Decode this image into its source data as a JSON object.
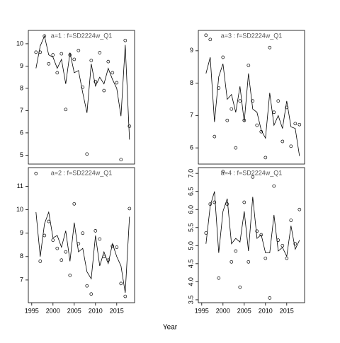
{
  "xlabel": "Year",
  "chart_data": [
    {
      "type": "scatter",
      "title": "a=1  :  f=SD2224w_Q1",
      "x": [
        1996,
        1997,
        1998,
        1999,
        2000,
        2001,
        2002,
        2003,
        2004,
        2005,
        2006,
        2007,
        2008,
        2009,
        2010,
        2011,
        2012,
        2013,
        2014,
        2015,
        2016,
        2017,
        2018
      ],
      "values": [
        9.62,
        9.62,
        10.35,
        9.1,
        9.5,
        8.7,
        9.55,
        7.05,
        9.5,
        9.3,
        9.7,
        8.05,
        5.05,
        9.25,
        8.3,
        9.6,
        7.9,
        9.2,
        8.7,
        8.25,
        4.8,
        10.15,
        6.3
      ],
      "fit": [
        8.9,
        9.9,
        10.35,
        9.5,
        9.4,
        8.9,
        9.3,
        8.2,
        9.6,
        8.7,
        8.8,
        7.8,
        6.9,
        9.1,
        8.1,
        8.5,
        8.2,
        8.9,
        8.4,
        8.0,
        6.75,
        9.95,
        5.7
      ],
      "xlim": [
        1994.2,
        2019.2
      ],
      "ylim": [
        4.6,
        10.6
      ],
      "yticks": [
        5,
        6,
        7,
        8,
        9,
        10
      ]
    },
    {
      "type": "scatter",
      "title": "a=3  :  f=SD2224w_Q1",
      "x": [
        1996,
        1997,
        1998,
        1999,
        2000,
        2001,
        2002,
        2003,
        2004,
        2005,
        2006,
        2007,
        2008,
        2009,
        2010,
        2011,
        2012,
        2013,
        2014,
        2015,
        2016,
        2017,
        2018
      ],
      "values": [
        9.48,
        9.35,
        6.35,
        7.85,
        8.8,
        6.85,
        7.2,
        6.0,
        7.45,
        6.85,
        8.55,
        7.45,
        6.7,
        6.5,
        5.7,
        9.1,
        7.1,
        7.45,
        6.2,
        7.25,
        6.05,
        6.75,
        6.72
      ],
      "fit": [
        8.3,
        8.8,
        6.8,
        8.2,
        8.6,
        7.5,
        7.65,
        7.1,
        7.9,
        6.8,
        8.3,
        7.2,
        7.1,
        6.55,
        6.3,
        7.7,
        6.7,
        7.0,
        6.6,
        7.45,
        6.65,
        6.6,
        5.75
      ],
      "xlim": [
        1994.2,
        2019.2
      ],
      "ylim": [
        5.5,
        9.63
      ],
      "yticks": [
        6,
        7,
        8,
        9
      ]
    },
    {
      "type": "scatter",
      "title": "a=2  :  f=SD2224w_Q1",
      "x": [
        1996,
        1997,
        1998,
        1999,
        2000,
        2001,
        2002,
        2003,
        2004,
        2005,
        2006,
        2007,
        2008,
        2009,
        2010,
        2011,
        2012,
        2013,
        2014,
        2015,
        2016,
        2017,
        2018
      ],
      "values": [
        11.55,
        7.8,
        8.9,
        9.5,
        8.7,
        8.35,
        7.85,
        8.2,
        7.2,
        10.25,
        8.55,
        9.0,
        6.75,
        6.4,
        9.1,
        8.75,
        8.0,
        7.85,
        8.45,
        8.4,
        6.85,
        6.3,
        10.05
      ],
      "fit": [
        9.9,
        8.0,
        9.4,
        9.9,
        8.8,
        8.9,
        8.4,
        9.1,
        7.8,
        9.45,
        8.2,
        8.35,
        7.35,
        7.05,
        8.9,
        7.6,
        8.2,
        7.7,
        8.55,
        8.0,
        7.6,
        6.45,
        9.7
      ],
      "xlim": [
        1994.2,
        2019.2
      ],
      "ylim": [
        6.03,
        11.8
      ],
      "yticks": [
        7,
        8,
        9,
        10,
        11
      ],
      "xticks": [
        1995,
        2000,
        2005,
        2010,
        2015
      ]
    },
    {
      "type": "scatter",
      "title": "a=4  :  f=SD2224w_Q1",
      "x": [
        1996,
        1997,
        1998,
        1999,
        2000,
        2001,
        2002,
        2003,
        2004,
        2005,
        2006,
        2007,
        2008,
        2009,
        2010,
        2011,
        2012,
        2013,
        2014,
        2015,
        2016,
        2017,
        2018
      ],
      "values": [
        5.35,
        6.15,
        6.2,
        4.1,
        7.05,
        6.15,
        4.55,
        4.85,
        3.85,
        6.2,
        4.55,
        6.9,
        5.4,
        5.3,
        4.65,
        3.55,
        6.65,
        5.15,
        5.0,
        4.65,
        5.7,
        5.05,
        6.0
      ],
      "fit": [
        5.05,
        6.1,
        6.5,
        4.8,
        5.95,
        6.3,
        5.05,
        5.2,
        5.1,
        5.95,
        4.85,
        6.35,
        5.2,
        5.3,
        4.8,
        4.8,
        5.85,
        4.85,
        4.95,
        4.7,
        5.55,
        4.9,
        5.15
      ],
      "xlim": [
        1994.2,
        2019.2
      ],
      "ylim": [
        3.42,
        7.16
      ],
      "yticks": [
        {
          "value": 3.5,
          "label": "3.5"
        },
        {
          "value": 4,
          "label": "4.0"
        },
        {
          "value": 4.5,
          "label": "4.5"
        },
        {
          "value": 5,
          "label": "5.0"
        },
        {
          "value": 5.5,
          "label": "5.5"
        },
        {
          "value": 6,
          "label": "6.0"
        },
        {
          "value": 6.5,
          "label": "6.5"
        },
        {
          "value": 7,
          "label": "7.0"
        }
      ],
      "xticks": [
        1995,
        2000,
        2005,
        2010,
        2015
      ]
    }
  ]
}
